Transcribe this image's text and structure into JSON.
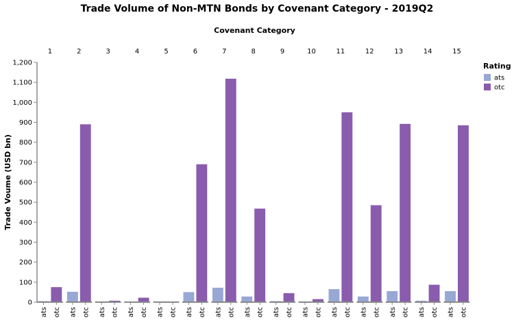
{
  "chart_data": {
    "type": "bar",
    "title": "Trade Volume of Non-MTN Bonds by Covenant Category - 2019Q2",
    "facet_title": "Covenant Category",
    "ylabel": "Trade Voume (USD bn)",
    "ylim": [
      0,
      1200
    ],
    "y_ticks": [
      0,
      100,
      200,
      300,
      400,
      500,
      600,
      700,
      800,
      900,
      1000,
      1100,
      1200
    ],
    "y_tick_labels": [
      "0",
      "100",
      "200",
      "300",
      "400",
      "500",
      "600",
      "700",
      "800",
      "900",
      "1,000",
      "1,100",
      "1,200"
    ],
    "grid": false,
    "legend_position": "top-right",
    "legend_title": "Rating",
    "categories": [
      "1",
      "2",
      "3",
      "4",
      "5",
      "6",
      "7",
      "8",
      "9",
      "10",
      "11",
      "12",
      "13",
      "14",
      "15"
    ],
    "sub_categories": [
      "ats",
      "otc"
    ],
    "series": [
      {
        "name": "ats",
        "color": "#98a8d4",
        "values": [
          5,
          52,
          2,
          3,
          2,
          50,
          72,
          28,
          5,
          3,
          65,
          28,
          55,
          7,
          55
        ]
      },
      {
        "name": "otc",
        "color": "#8a5cad",
        "values": [
          75,
          890,
          7,
          22,
          3,
          690,
          1118,
          468,
          45,
          15,
          950,
          485,
          892,
          87,
          885
        ]
      }
    ]
  }
}
